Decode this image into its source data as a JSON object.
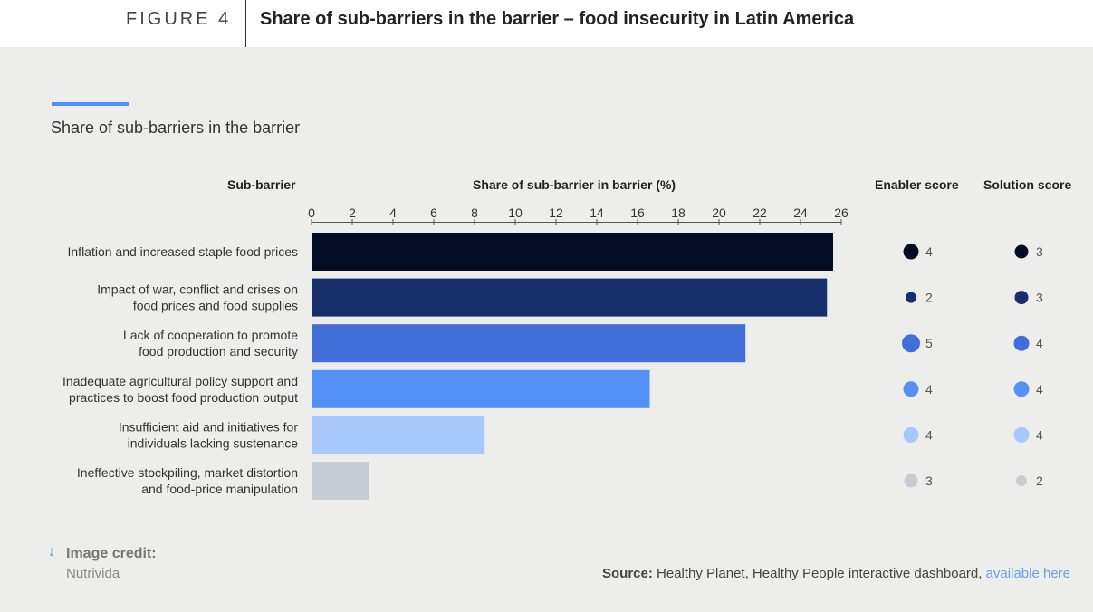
{
  "header": {
    "figure_label": "FIGURE 4",
    "title": "Share of sub-barriers in the barrier – food insecurity in Latin America"
  },
  "subtitle": "Share of sub-barriers in the barrier",
  "columns": {
    "sub_barrier": "Sub-barrier",
    "share": "Share of sub-barrier in barrier (%)",
    "enabler": "Enabler score",
    "solution": "Solution score"
  },
  "chart_data": {
    "type": "bar",
    "orientation": "horizontal",
    "xlim": [
      0,
      26
    ],
    "xticks": [
      0,
      2,
      4,
      6,
      8,
      10,
      12,
      14,
      16,
      18,
      20,
      22,
      24,
      26
    ],
    "xlabel": "Share of sub-barrier in barrier (%)",
    "categories": [
      [
        "Inflation and increased staple food prices"
      ],
      [
        "Impact of war, conflict and crises on",
        "food prices and food supplies"
      ],
      [
        "Lack of cooperation to promote",
        "food production and security"
      ],
      [
        "Inadequate agricultural policy support and",
        "practices to boost food production output"
      ],
      [
        "Insufficient aid and initiatives for",
        "individuals lacking sustenance"
      ],
      [
        "Ineffective stockpiling, market distortion",
        "and food-price manipulation"
      ]
    ],
    "values": [
      25.6,
      25.3,
      21.3,
      16.6,
      8.5,
      2.8
    ],
    "bar_colors": [
      "#050d24",
      "#172f6b",
      "#426ed9",
      "#5391f8",
      "#a8c7fb",
      "#c6ccd3"
    ],
    "enabler_scores": [
      4,
      2,
      5,
      4,
      4,
      3
    ],
    "solution_scores": [
      3,
      3,
      4,
      4,
      4,
      2
    ]
  },
  "footer": {
    "credit_arrow": "↓",
    "credit_label": "Image credit:",
    "credit_value": "Nutrivida",
    "source_label": "Source:",
    "source_text": " Healthy Planet, Healthy People interactive dashboard, ",
    "source_link": "available here"
  }
}
